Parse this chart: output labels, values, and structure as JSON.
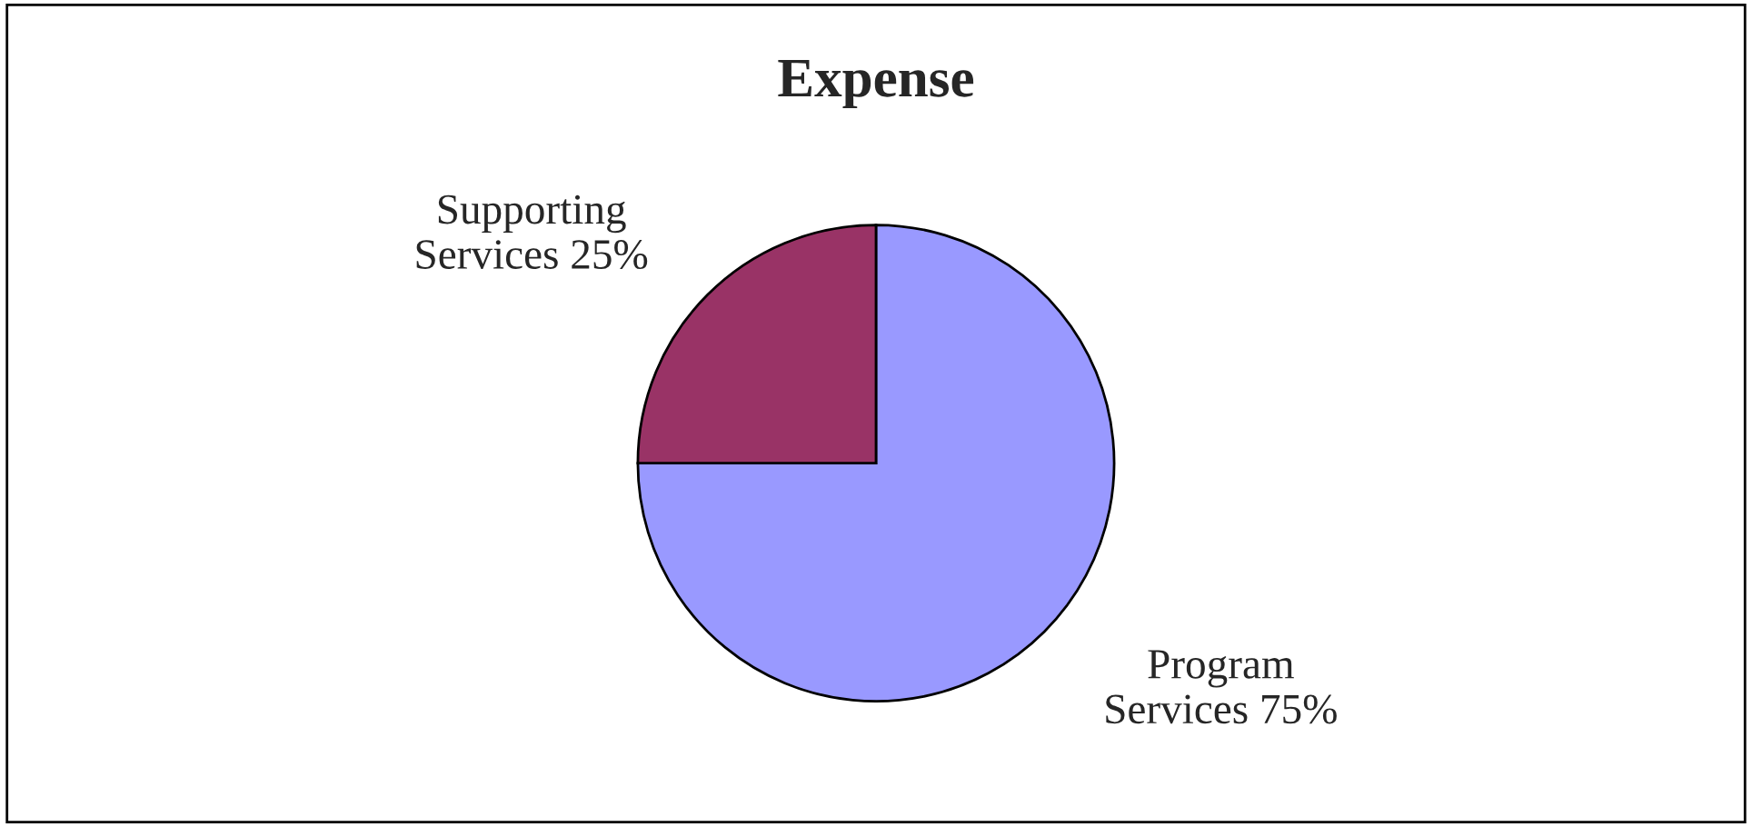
{
  "chart_data": {
    "type": "pie",
    "title": "Expense",
    "categories": [
      "Program Services",
      "Supporting Services"
    ],
    "values": [
      75,
      25
    ],
    "value_labels": [
      "75%",
      "25%"
    ],
    "colors": [
      "#9999ff",
      "#993366"
    ],
    "legend": false
  }
}
